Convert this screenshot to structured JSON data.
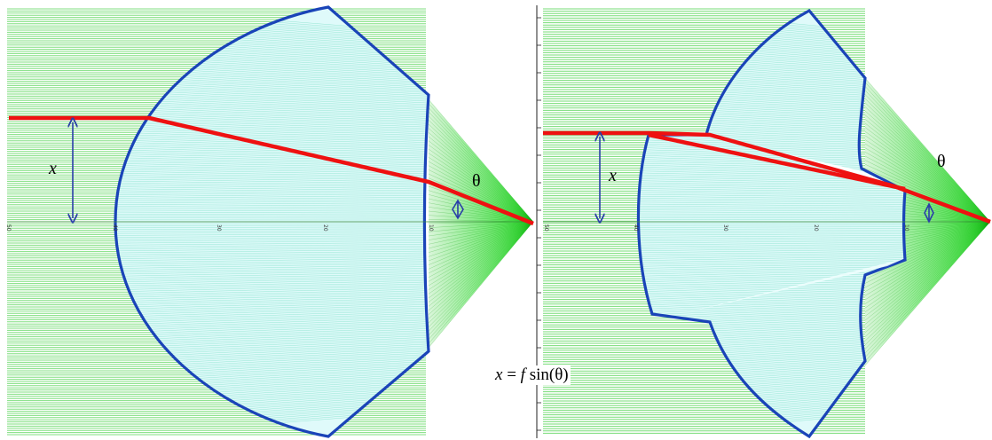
{
  "colors": {
    "green_lines": "#55d455",
    "green_dark": "#00dd00",
    "lens_fill": "#dffafa",
    "lens_lines": "#55d6b0",
    "outline": "#1a44b8",
    "ray": "#ee1111",
    "marker": "#2a3fa8"
  },
  "left_panel": {
    "height_label": "x",
    "angle_label": "θ",
    "axis_ticks": [
      "50",
      "40",
      "30",
      "20",
      "10"
    ]
  },
  "right_panel": {
    "height_label": "x",
    "angle_label": "θ",
    "axis_ticks": [
      "50",
      "40",
      "30",
      "20",
      "10"
    ]
  },
  "formula": {
    "x": "x",
    "eq": " = ",
    "f": "f",
    "sin": " sin(θ)"
  }
}
